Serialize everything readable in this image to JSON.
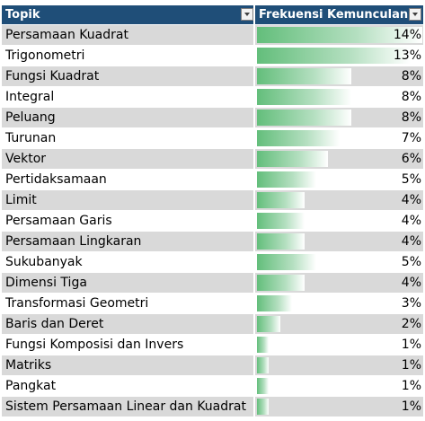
{
  "table": {
    "header": {
      "topic_label": "Topik",
      "freq_label": "Frekuensi Kemunculan"
    },
    "accent_color": "#1f4e78",
    "bar_color": "#63be7b",
    "rows": [
      {
        "topic": "Persamaan Kuadrat",
        "value": "14%",
        "pct": 14
      },
      {
        "topic": "Trigonometri",
        "value": "13%",
        "pct": 13
      },
      {
        "topic": "Fungsi Kuadrat",
        "value": "8%",
        "pct": 8
      },
      {
        "topic": "Integral",
        "value": "8%",
        "pct": 8
      },
      {
        "topic": "Peluang",
        "value": "8%",
        "pct": 8
      },
      {
        "topic": "Turunan",
        "value": "7%",
        "pct": 7
      },
      {
        "topic": "Vektor",
        "value": "6%",
        "pct": 6
      },
      {
        "topic": "Pertidaksamaan",
        "value": "5%",
        "pct": 5
      },
      {
        "topic": "Limit",
        "value": "4%",
        "pct": 4
      },
      {
        "topic": "Persamaan Garis",
        "value": "4%",
        "pct": 4
      },
      {
        "topic": "Persamaan Lingkaran",
        "value": "4%",
        "pct": 4
      },
      {
        "topic": "Sukubanyak",
        "value": "5%",
        "pct": 5
      },
      {
        "topic": "Dimensi Tiga",
        "value": "4%",
        "pct": 4
      },
      {
        "topic": "Transformasi Geometri",
        "value": "3%",
        "pct": 3
      },
      {
        "topic": "Baris dan Deret",
        "value": "2%",
        "pct": 2
      },
      {
        "topic": "Fungsi Komposisi dan Invers",
        "value": "1%",
        "pct": 1
      },
      {
        "topic": "Matriks",
        "value": "1%",
        "pct": 1
      },
      {
        "topic": "Pangkat",
        "value": "1%",
        "pct": 1
      },
      {
        "topic": "Sistem Persamaan Linear dan Kuadrat",
        "value": "1%",
        "pct": 1
      }
    ]
  }
}
